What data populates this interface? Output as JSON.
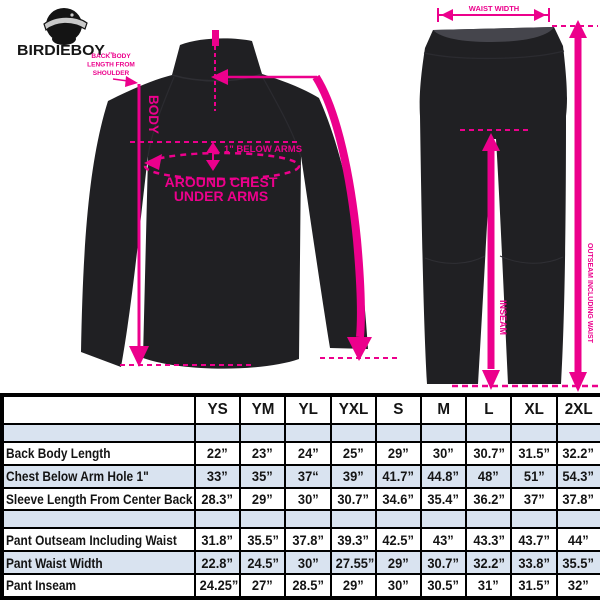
{
  "brand": {
    "wordmark": "BIRDIEBOY",
    "trademark": "™"
  },
  "colors": {
    "accent": "#EC008C",
    "garment": "#202023",
    "garment_inner": "#45454c",
    "row_alt": "#d9e3f0",
    "border": "#000000"
  },
  "jacket": {
    "back_length_label_lines": [
      "BACK BODY",
      "LENGTH FROM",
      "SHOULDER"
    ],
    "body_label": "BODY",
    "below_arms_label": "1\" BELOW ARMS",
    "around_chest_line1": "AROUND CHEST",
    "around_chest_line2": "UNDER ARMS"
  },
  "pants": {
    "waist_label": "WAIST WIDTH",
    "outseam_label": "OUTSEAM INCLUDING WAIST",
    "inseam_label": "INSEAM"
  },
  "table": {
    "columns": [
      "",
      "YS",
      "YM",
      "YL",
      "YXL",
      "S",
      "M",
      "L",
      "XL",
      "2XL"
    ],
    "rows": [
      {
        "label": "",
        "spacer": true,
        "values": [
          "",
          "",
          "",
          "",
          "",
          "",
          "",
          "",
          ""
        ]
      },
      {
        "label": "Back Body Length",
        "values": [
          "22”",
          "23”",
          "24”",
          "25”",
          "29”",
          "30”",
          "30.7”",
          "31.5”",
          "32.2”"
        ]
      },
      {
        "label": "Chest Below Arm Hole 1\"",
        "values": [
          "33”",
          "35”",
          "37“",
          "39”",
          "41.7”",
          "44.8”",
          "48”",
          "51”",
          "54.3”"
        ]
      },
      {
        "label": "Sleeve Length From Center Back",
        "values": [
          "28.3”",
          "29”",
          "30”",
          "30.7”",
          "34.6”",
          "35.4”",
          "36.2”",
          "37”",
          "37.8”"
        ]
      },
      {
        "label": "",
        "spacer": true,
        "values": [
          "",
          "",
          "",
          "",
          "",
          "",
          "",
          "",
          ""
        ]
      },
      {
        "label": "Pant Outseam Including Waist",
        "values": [
          "31.8”",
          "35.5”",
          "37.8”",
          "39.3”",
          "42.5”",
          "43”",
          "43.3”",
          "43.7”",
          "44”"
        ]
      },
      {
        "label": "Pant Waist Width",
        "values": [
          "22.8”",
          "24.5”",
          "30”",
          "27.55”",
          "29”",
          "30.7”",
          "32.2”",
          "33.8”",
          "35.5”"
        ]
      },
      {
        "label": "Pant Inseam",
        "values": [
          "24.25”",
          "27”",
          "28.5”",
          "29”",
          "30”",
          "30.5”",
          "31”",
          "31.5”",
          "32”"
        ]
      }
    ]
  }
}
